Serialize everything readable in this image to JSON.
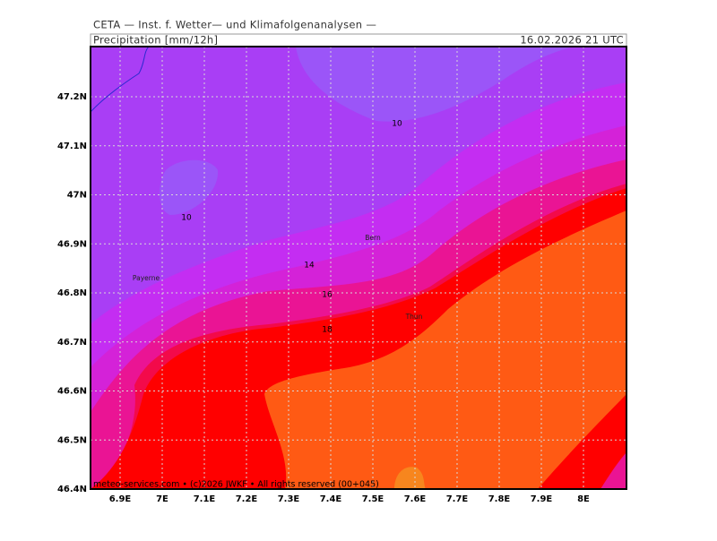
{
  "header": "CETA — Inst. f. Wetter— und Klimafolgenanalysen —",
  "title": "Precipitation [mm/12h]",
  "valid_time": "16.02.2026 21 UTC",
  "lon_labels": [
    "6.9E",
    "7E",
    "7.1E",
    "7.2E",
    "7.3E",
    "7.4E",
    "7.5E",
    "7.6E",
    "7.7E",
    "7.8E",
    "7.9E",
    "8E"
  ],
  "lat_labels": [
    "47.2N",
    "47.1N",
    "47N",
    "46.9N",
    "46.8N",
    "46.7N",
    "46.6N",
    "46.5N",
    "46.4N"
  ],
  "contour_labels": [
    10,
    10,
    14,
    16,
    18
  ],
  "cities": [
    "Bern",
    "Payerne",
    "Thun"
  ],
  "footer": "meteo-services.com • (c)2026 JWKF • All rights reserved (00+045)"
}
